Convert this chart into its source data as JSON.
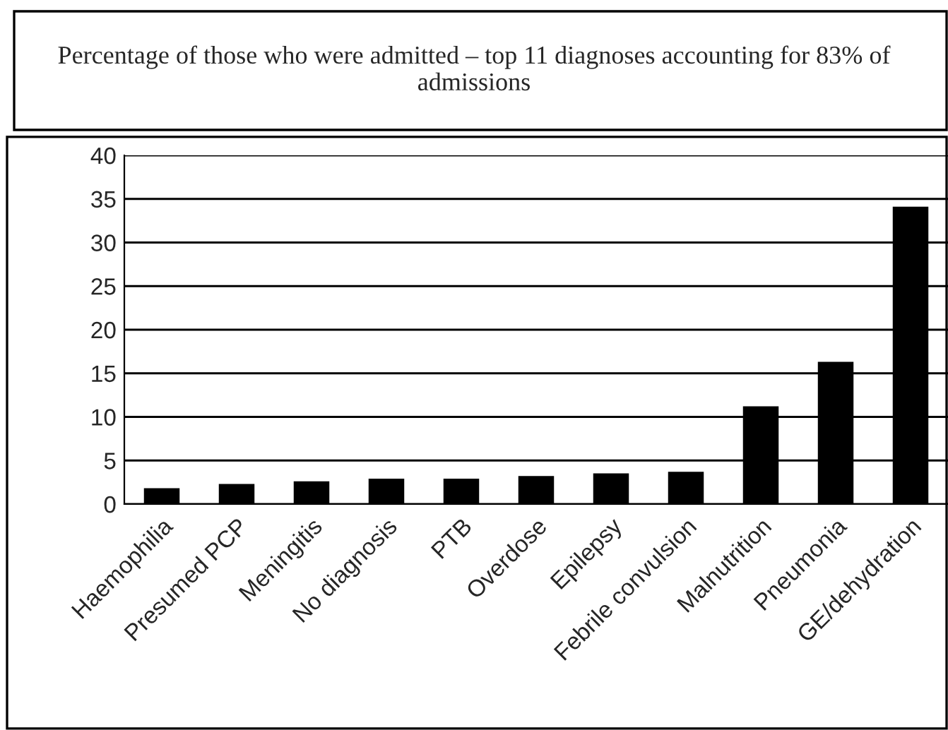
{
  "chart_data": {
    "type": "bar",
    "title": "Percentage of those who were admitted – top 11 diagnoses accounting for 83% of admissions",
    "categories": [
      "Haemophilia",
      "Presumed PCP",
      "Meningitis",
      "No diagnosis",
      "PTB",
      "Overdose",
      "Epilepsy",
      "Febrile convulsion",
      "Malnutrition",
      "Pneumonia",
      "GE/dehydration"
    ],
    "values": [
      1.7,
      2.2,
      2.5,
      2.8,
      2.8,
      3.1,
      3.4,
      3.6,
      11.1,
      16.2,
      34.0
    ],
    "color": "#000000",
    "ylim": [
      0,
      40
    ],
    "yticks": [
      0,
      5,
      10,
      15,
      20,
      25,
      30,
      35,
      40
    ],
    "grid": "y",
    "legend": false
  }
}
